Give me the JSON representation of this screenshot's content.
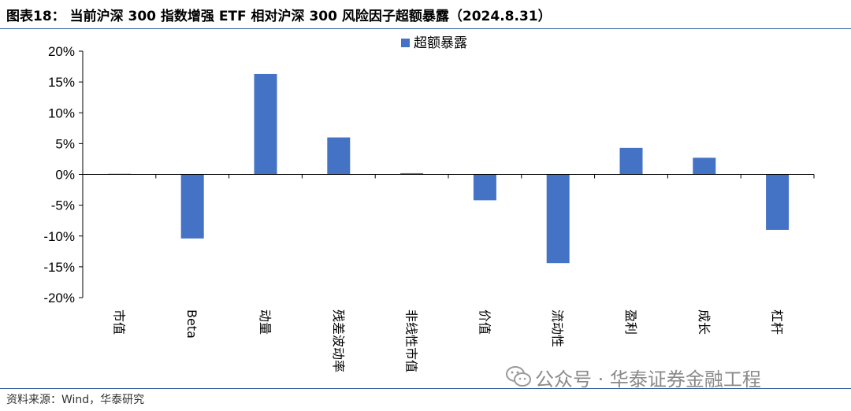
{
  "header": {
    "title": "图表18： 当前沪深 300 指数增强 ETF 相对沪深 300 风险因子超额暴露（2024.8.31）"
  },
  "footer": {
    "source": "资料来源：Wind，华泰研究",
    "watermark": "公众号 · 华泰证券金融工程"
  },
  "colors": {
    "bar": "#4472c4",
    "rule": "#2c5c9a"
  },
  "chart_data": {
    "type": "bar",
    "categories": [
      "市值",
      "Beta",
      "动量",
      "残差波动率",
      "非线性市值",
      "价值",
      "流动性",
      "盈利",
      "成长",
      "杠杆"
    ],
    "series": [
      {
        "name": "超额暴露",
        "values": [
          0.1,
          -10.4,
          16.3,
          6.0,
          0.2,
          -4.2,
          -14.4,
          4.3,
          2.7,
          -9.0
        ]
      }
    ],
    "ylim": [
      -20,
      20
    ],
    "yticks": [
      -20,
      -15,
      -10,
      -5,
      0,
      5,
      10,
      15,
      20
    ],
    "ytick_labels": [
      "-20%",
      "-15%",
      "-10%",
      "-5%",
      "0%",
      "5%",
      "10%",
      "15%",
      "20%"
    ],
    "legend_position": "top-center",
    "grid": false
  }
}
